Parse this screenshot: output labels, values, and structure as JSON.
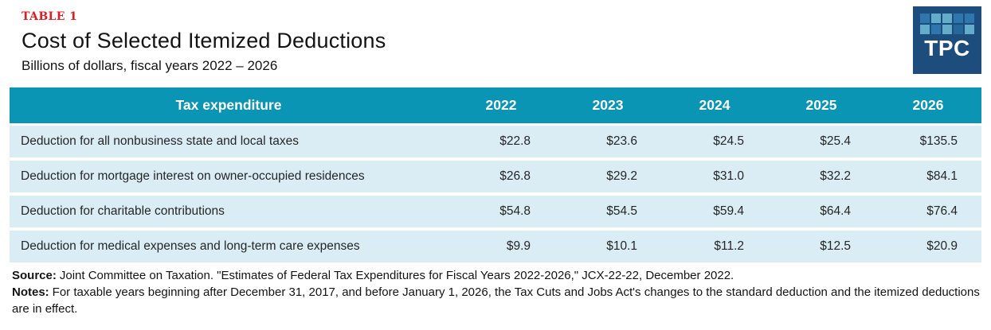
{
  "header": {
    "table_number": "TABLE 1",
    "title": "Cost of Selected Itemized Deductions",
    "subtitle": "Billions of dollars, fiscal years 2022 – 2026"
  },
  "logo": {
    "text": "TPC"
  },
  "table": {
    "columns": [
      "Tax expenditure",
      "2022",
      "2023",
      "2024",
      "2025",
      "2026"
    ],
    "rows": [
      {
        "label": "Deduction for all nonbusiness state and local taxes",
        "values": [
          "$22.8",
          "$23.6",
          "$24.5",
          "$25.4",
          "$135.5"
        ]
      },
      {
        "label": "Deduction for mortgage interest on owner-occupied residences",
        "values": [
          "$26.8",
          "$29.2",
          "$31.0",
          "$32.2",
          "$84.1"
        ]
      },
      {
        "label": "Deduction for charitable contributions",
        "values": [
          "$54.8",
          "$54.5",
          "$59.4",
          "$64.4",
          "$76.4"
        ]
      },
      {
        "label": "Deduction for medical expenses and long-term care expenses",
        "values": [
          "$9.9",
          "$10.1",
          "$11.2",
          "$12.5",
          "$20.9"
        ]
      }
    ]
  },
  "footer": {
    "source_label": "Source:",
    "source_text": "Joint Committee on Taxation.  \"Estimates of Federal Tax Expenditures for Fiscal Years 2022-2026,\" JCX-22-22, December 2022.",
    "notes_label": "Notes:",
    "notes_text": "For taxable years beginning after December 31, 2017, and before January 1, 2026, the Tax Cuts and Jobs Act's changes to the standard deduction and the itemized deductions are in effect."
  },
  "colors": {
    "table_header_bg": "#0a95b5",
    "row_bg": "#daedf5",
    "table_number_red": "#e11b22",
    "logo_navy": "#1d4d7c",
    "logo_square_medium": "#2e77ac",
    "logo_square_light": "#63adca"
  },
  "chart_data": {
    "type": "table",
    "title": "Cost of Selected Itemized Deductions",
    "subtitle": "Billions of dollars, fiscal years 2022 – 2026",
    "units": "billions of dollars",
    "categories": [
      "2022",
      "2023",
      "2024",
      "2025",
      "2026"
    ],
    "series": [
      {
        "name": "Deduction for all nonbusiness state and local taxes",
        "values": [
          22.8,
          23.6,
          24.5,
          25.4,
          135.5
        ]
      },
      {
        "name": "Deduction for mortgage interest on owner-occupied residences",
        "values": [
          26.8,
          29.2,
          31.0,
          32.2,
          84.1
        ]
      },
      {
        "name": "Deduction for charitable contributions",
        "values": [
          54.8,
          54.5,
          59.4,
          64.4,
          76.4
        ]
      },
      {
        "name": "Deduction for medical expenses and long-term care expenses",
        "values": [
          9.9,
          10.1,
          11.2,
          12.5,
          20.9
        ]
      }
    ]
  }
}
